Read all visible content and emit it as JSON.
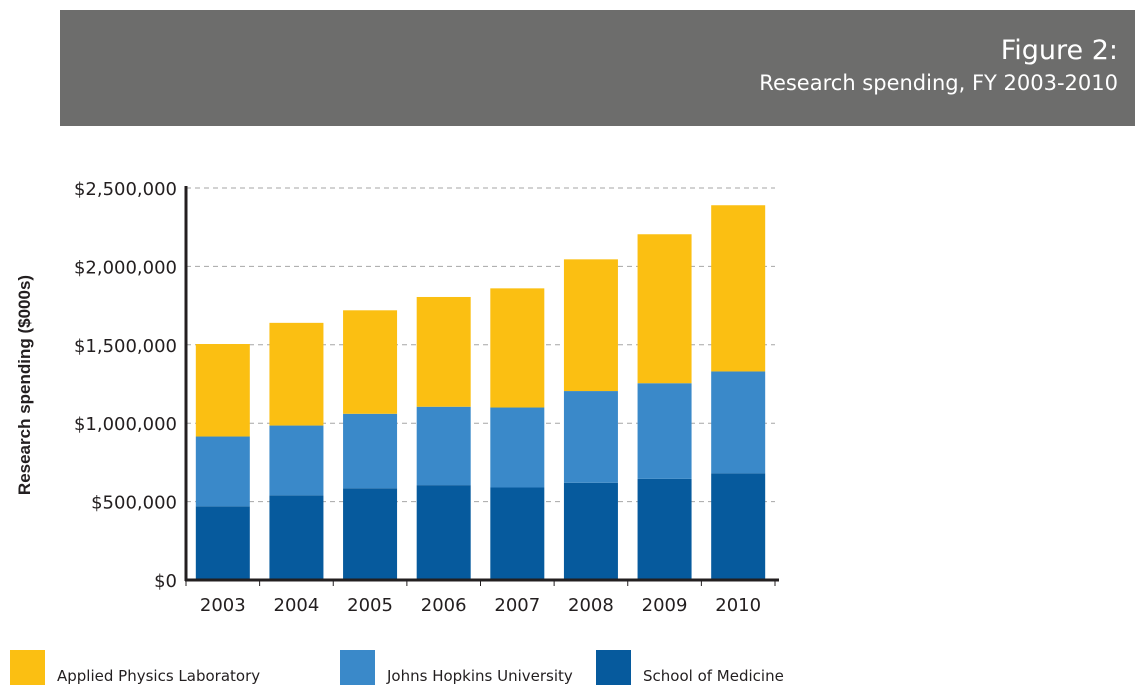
{
  "header": {
    "figure_label": "Figure 2:",
    "figure_subtitle": "Research spending, FY 2003-2010"
  },
  "colors": {
    "banner": "#6d6d6c",
    "apl": "#fbbf12",
    "jhu": "#3a89c9",
    "som": "#065a9d",
    "axis": "#231f20",
    "grid": "#a6a6a6"
  },
  "chart_data": {
    "type": "bar",
    "stacked": true,
    "title": "Research spending, FY 2003-2010",
    "xlabel": "",
    "ylabel": "Research spending ($000s)",
    "ylim": [
      0,
      2500000
    ],
    "yticks": [
      0,
      500000,
      1000000,
      1500000,
      2000000,
      2500000
    ],
    "ytick_labels": [
      "$0",
      "$500,000",
      "$1,000,000",
      "$1,500,000",
      "$2,000,000",
      "$2,500,000"
    ],
    "grid": true,
    "legend_position": "bottom",
    "categories": [
      "2003",
      "2004",
      "2005",
      "2006",
      "2007",
      "2008",
      "2009",
      "2010"
    ],
    "series": [
      {
        "name": "School of Medicine",
        "color": "#065a9d",
        "values": [
          470000,
          540000,
          585000,
          605000,
          590000,
          620000,
          645000,
          680000
        ]
      },
      {
        "name": "Johns Hopkins University",
        "color": "#3a89c9",
        "values": [
          445000,
          445000,
          475000,
          500000,
          510000,
          585000,
          610000,
          650000
        ]
      },
      {
        "name": "Applied Physics Laboratory",
        "color": "#fbbf12",
        "values": [
          590000,
          655000,
          660000,
          700000,
          760000,
          840000,
          950000,
          1060000
        ]
      }
    ]
  },
  "legend": [
    {
      "label": "Applied Physics Laboratory",
      "color": "#fbbf12"
    },
    {
      "label": "Johns Hopkins University",
      "color": "#3a89c9"
    },
    {
      "label": "School of Medicine",
      "color": "#065a9d"
    }
  ]
}
